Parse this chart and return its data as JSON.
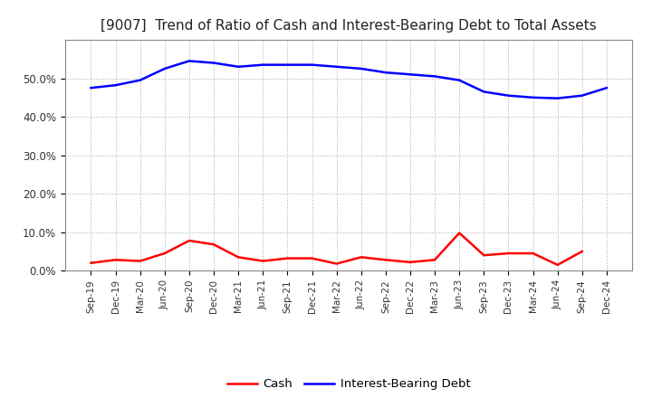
{
  "title": "[9007]  Trend of Ratio of Cash and Interest-Bearing Debt to Total Assets",
  "x_labels": [
    "Sep-19",
    "Dec-19",
    "Mar-20",
    "Jun-20",
    "Sep-20",
    "Dec-20",
    "Mar-21",
    "Jun-21",
    "Sep-21",
    "Dec-21",
    "Mar-22",
    "Jun-22",
    "Sep-22",
    "Dec-22",
    "Mar-23",
    "Jun-23",
    "Sep-23",
    "Dec-23",
    "Mar-24",
    "Jun-24",
    "Sep-24",
    "Dec-24"
  ],
  "cash": [
    2.0,
    2.8,
    2.5,
    4.5,
    7.8,
    6.8,
    3.5,
    2.5,
    3.2,
    3.2,
    1.8,
    3.5,
    2.8,
    2.2,
    2.8,
    9.8,
    4.0,
    4.5,
    4.5,
    1.5,
    5.0,
    null
  ],
  "interest_bearing_debt": [
    47.5,
    48.2,
    49.5,
    52.5,
    54.5,
    54.0,
    53.0,
    53.5,
    53.5,
    53.5,
    53.0,
    52.5,
    51.5,
    51.0,
    50.5,
    49.5,
    46.5,
    45.5,
    45.0,
    44.8,
    45.5,
    47.5
  ],
  "cash_color": "#ff0000",
  "debt_color": "#0000ff",
  "background_color": "#ffffff",
  "grid_color": "#aaaaaa",
  "ylim": [
    0,
    60
  ],
  "yticks": [
    0.0,
    10.0,
    20.0,
    30.0,
    40.0,
    50.0
  ],
  "ytick_labels": [
    "0.0%",
    "10.0%",
    "20.0%",
    "30.0%",
    "40.0%",
    "50.0%"
  ],
  "title_fontsize": 11,
  "legend_cash": "Cash",
  "legend_debt": "Interest-Bearing Debt",
  "line_width": 1.8
}
